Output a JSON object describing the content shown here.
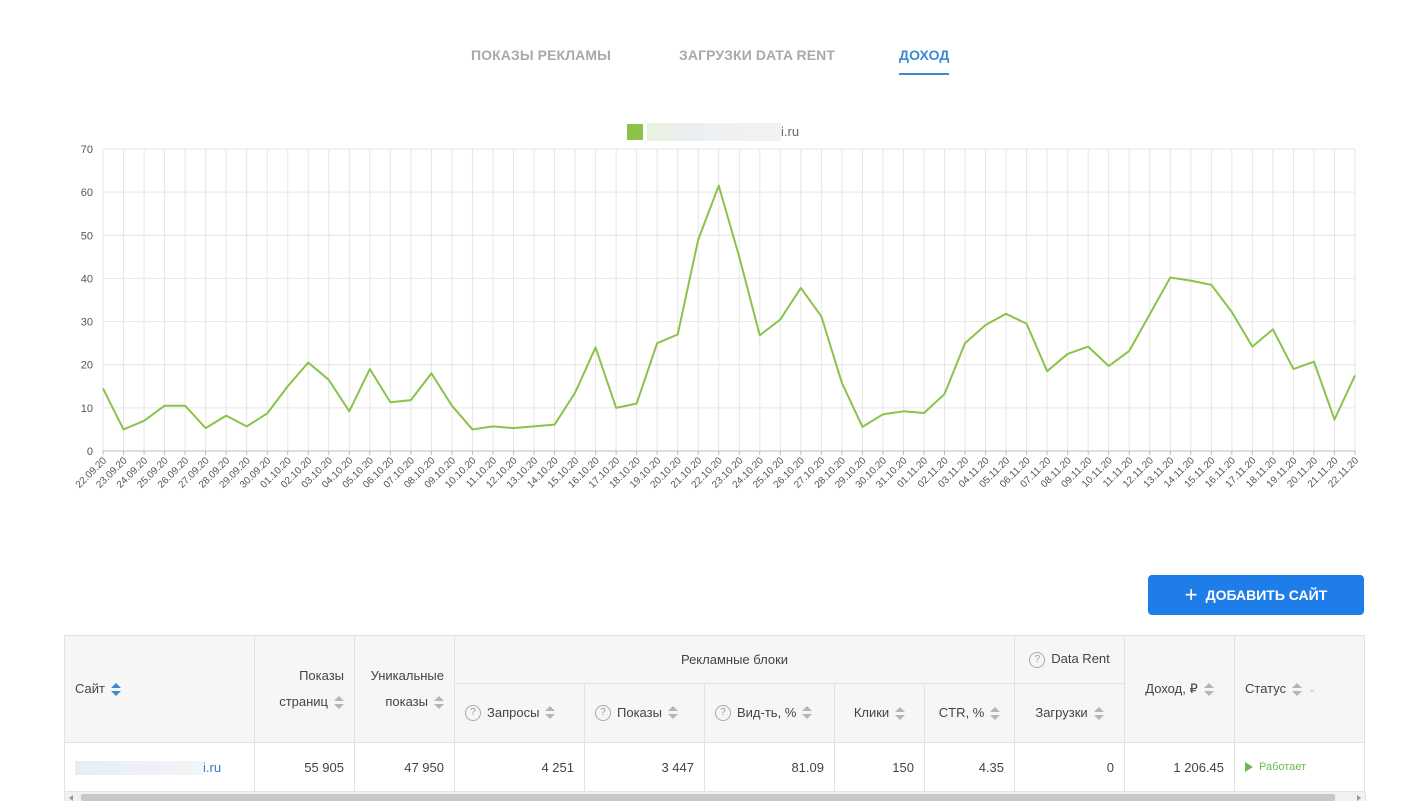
{
  "tabs": [
    {
      "label": "ПОКАЗЫ РЕКЛАМЫ",
      "active": false
    },
    {
      "label": "ЗАГРУЗКИ DATA RENT",
      "active": false
    },
    {
      "label": "ДОХОД",
      "active": true
    }
  ],
  "colors": {
    "accent": "#3d8ad1",
    "line": "#8bc34a",
    "button": "#1e7de8",
    "status": "#6cba4f"
  },
  "chart_data": {
    "type": "line",
    "legend": "i.ru",
    "ylim": [
      0,
      70
    ],
    "yticks": [
      0,
      10,
      20,
      30,
      40,
      50,
      60,
      70
    ],
    "grid": true,
    "legend_position": "top-center",
    "x": [
      "22.09.20",
      "23.09.20",
      "24.09.20",
      "25.09.20",
      "26.09.20",
      "27.09.20",
      "28.09.20",
      "29.09.20",
      "30.09.20",
      "01.10.20",
      "02.10.20",
      "03.10.20",
      "04.10.20",
      "05.10.20",
      "06.10.20",
      "07.10.20",
      "08.10.20",
      "09.10.20",
      "10.10.20",
      "11.10.20",
      "12.10.20",
      "13.10.20",
      "14.10.20",
      "15.10.20",
      "16.10.20",
      "17.10.20",
      "18.10.20",
      "19.10.20",
      "20.10.20",
      "21.10.20",
      "22.10.20",
      "23.10.20",
      "24.10.20",
      "25.10.20",
      "26.10.20",
      "27.10.20",
      "28.10.20",
      "29.10.20",
      "30.10.20",
      "31.10.20",
      "01.11.20",
      "02.11.20",
      "03.11.20",
      "04.11.20",
      "05.11.20",
      "06.11.20",
      "07.11.20",
      "08.11.20",
      "09.11.20",
      "10.11.20",
      "11.11.20",
      "12.11.20",
      "13.11.20",
      "14.11.20",
      "15.11.20",
      "16.11.20",
      "17.11.20",
      "18.11.20",
      "19.11.20",
      "20.11.20",
      "21.11.20",
      "22.11.20"
    ],
    "series": [
      {
        "name": "i.ru",
        "values": [
          14.5,
          5,
          7,
          10.5,
          10.5,
          5.3,
          8.2,
          5.7,
          8.7,
          15,
          20.5,
          16.5,
          9.2,
          19,
          11.3,
          11.8,
          18,
          10.5,
          5,
          5.7,
          5.3,
          5.7,
          6.1,
          13.5,
          24,
          10,
          11,
          25,
          27,
          49,
          61.5,
          45,
          26.8,
          30.5,
          37.8,
          31.2,
          15.8,
          5.6,
          8.5,
          9.2,
          8.8,
          13.2,
          25,
          29.2,
          31.8,
          29.5,
          18.5,
          22.5,
          24.2,
          19.7,
          23.2,
          31.7,
          40.2,
          39.5,
          38.5,
          32.2,
          24.2,
          28.2,
          19,
          20.7,
          7.3,
          17.5
        ]
      }
    ]
  },
  "add_button": {
    "label": "ДОБАВИТЬ САЙТ"
  },
  "table": {
    "headers": {
      "site": "Сайт",
      "page_views_line1": "Показы",
      "page_views_line2": "страниц",
      "unique_line1": "Уникальные",
      "unique_line2": "показы",
      "ad_blocks": "Рекламные блоки",
      "requests": "Запросы",
      "impressions": "Показы",
      "visibility": "Вид-ть, %",
      "clicks": "Клики",
      "ctr": "CTR, %",
      "data_rent": "Data Rent",
      "downloads": "Загрузки",
      "income": "Доход, ₽",
      "status": "Статус"
    },
    "rows": [
      {
        "site": "i.ru",
        "page_views": "55 905",
        "unique": "47 950",
        "requests": "4 251",
        "impressions": "3 447",
        "visibility": "81.09",
        "clicks": "150",
        "ctr": "4.35",
        "downloads": "0",
        "income": "1 206.45",
        "status": "Работает"
      }
    ]
  }
}
